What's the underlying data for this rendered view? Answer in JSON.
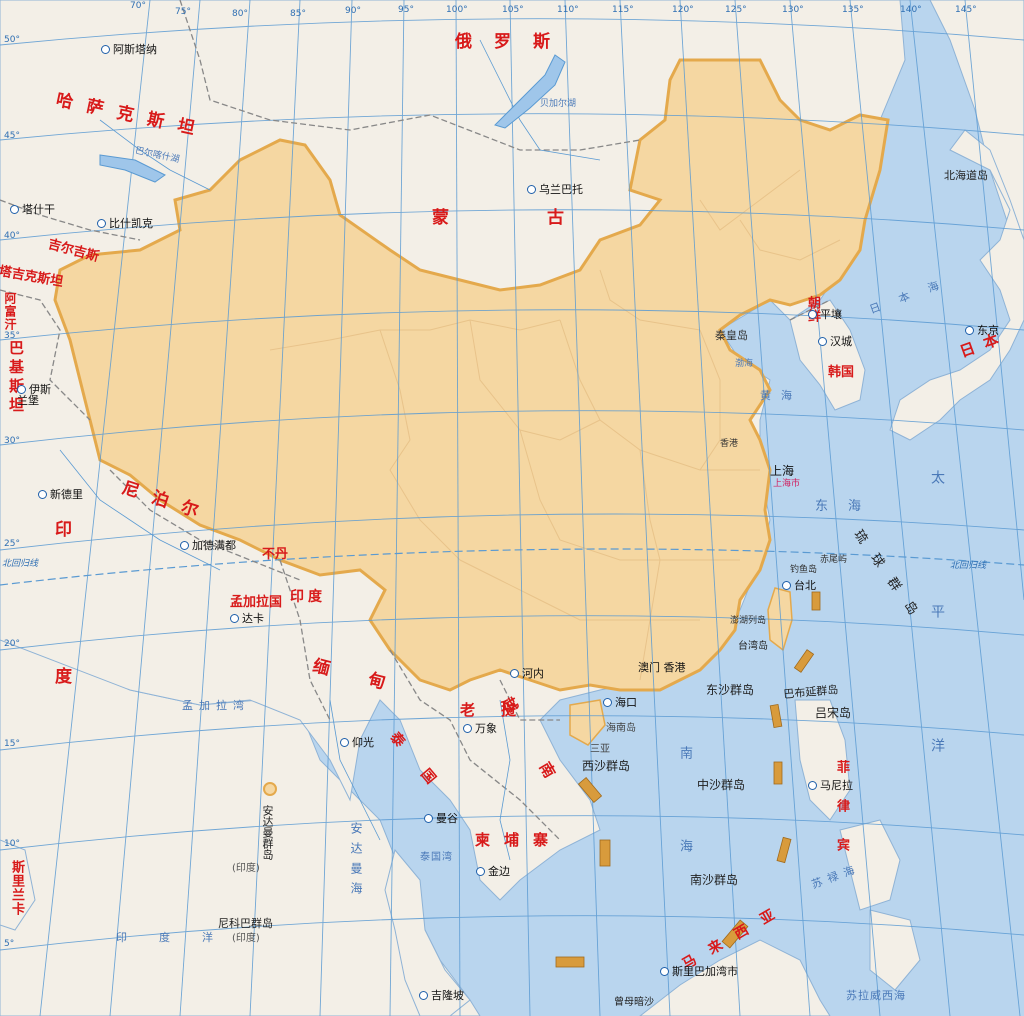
{
  "map": {
    "colors": {
      "sea": "#b9d5ee",
      "land": "#f3efe7",
      "china_fill": "#f5d7a2",
      "china_border": "#e4a94c",
      "graticule": "#5a9ad2",
      "country_label": "#d81a1a",
      "sea_label": "#4a79b8"
    },
    "countries": {
      "russia": "俄罗斯",
      "kazakhstan": "哈萨克斯坦",
      "mongolia": "蒙古",
      "kyrgyzstan": "吉尔吉斯",
      "tajikistan": "塔吉克斯坦",
      "afghanistan": "阿富汗",
      "pakistan": "巴基斯坦",
      "india": "印度",
      "nepal": "尼泊尔",
      "bhutan": "不丹",
      "bangladesh": "孟加拉国",
      "india_east": "印度",
      "myanmar": "缅甸",
      "laos": "老挝",
      "vietnam": "越南",
      "thailand": "泰国",
      "cambodia": "柬埔寨",
      "north_korea": "朝鲜",
      "south_korea": "韩国",
      "japan": "日本",
      "philippines": "菲律宾",
      "sri_lanka": "斯里兰卡",
      "malaysia": "马来西亚"
    },
    "cities": {
      "astana": "阿斯塔纳",
      "ulaanbaatar": "乌兰巴托",
      "tashkent": "塔什干",
      "bishkek": "比什凯克",
      "islamabad": "伊斯兰堡",
      "new_delhi": "新德里",
      "kathmandu": "加德满都",
      "dhaka": "达卡",
      "hanoi": "河内",
      "vientiane": "万象",
      "yangon": "仰光",
      "bangkok": "曼谷",
      "phnom_penh": "金边",
      "kuala_lumpur": "吉隆坡",
      "singapore": "斯里巴加湾市",
      "manila": "马尼拉",
      "pyongyang": "平壤",
      "seoul": "汉城",
      "tokyo": "东京",
      "taipei": "台北",
      "haikou": "海口",
      "shanghai": "上海",
      "macau_hk": "澳门 香港",
      "qinhuangdao": "秦皇岛"
    },
    "seas": {
      "japan_sea": "日本海",
      "yellow_sea": "黄海",
      "east_china_sea": "东海",
      "pacific": "太平洋",
      "south_china_sea": "南海",
      "indian_ocean": "印度洋",
      "bay_of_bengal": "孟加拉湾",
      "andaman_sea": "安达曼海",
      "sulu_sea": "苏禄海",
      "celebes_sea": "苏拉威西海",
      "gulf_of_thailand": "泰国湾",
      "lake_baikal": "贝加尔湖",
      "lake_balkhash": "巴尔喀什湖",
      "bohai": "渤海"
    },
    "islands": {
      "hokkaido": "北海道岛",
      "ryukyu": "琉球群岛",
      "hainan": "海南岛",
      "taiwan": "台湾岛",
      "xisha": "西沙群岛",
      "dongsha": "东沙群岛",
      "zhongsha": "中沙群岛",
      "nansha": "南沙群岛",
      "luzon": "吕宋岛",
      "babuyan": "巴布延群岛",
      "andaman": "安达曼群岛",
      "andaman_india": "(印度)",
      "nicobar": "尼科巴群岛",
      "nicobar_india": "(印度)",
      "zengmu": "曾母暗沙",
      "diaoyu": "钓鱼岛",
      "chiwei": "赤尾屿",
      "penghu": "澎湖列岛",
      "shanghai_city": "上海市",
      "xianggang": "香港",
      "sanya": "三亚"
    },
    "lines": {
      "tropic_left": "北回归线",
      "tropic_right": "北回归线"
    },
    "longitudes": [
      "70°",
      "75°",
      "80°",
      "85°",
      "90°",
      "95°",
      "100°",
      "105°",
      "110°",
      "115°",
      "120°",
      "125°",
      "130°",
      "135°",
      "140°",
      "145°"
    ],
    "latitudes": [
      "50°",
      "45°",
      "40°",
      "35°",
      "30°",
      "25°",
      "20°",
      "15°",
      "10°",
      "5°"
    ]
  }
}
